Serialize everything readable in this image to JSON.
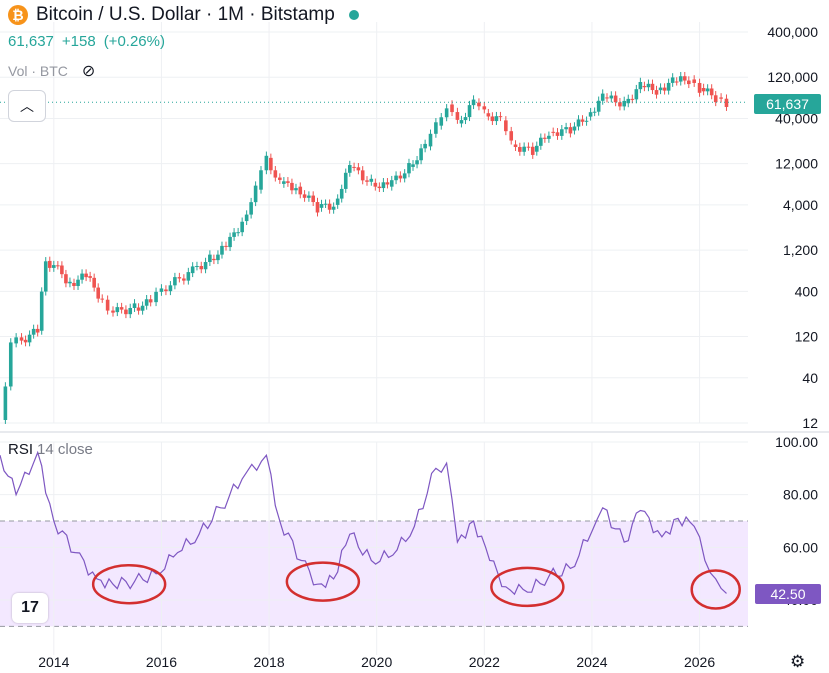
{
  "header": {
    "symbol_title": "Bitcoin / U.S. Dollar · 1M · Bitstamp",
    "coin_icon": "bitcoin-icon",
    "status_color": "#26a69a"
  },
  "quote": {
    "price": "61,637",
    "change": "+158",
    "change_pct": "(+0.26%)",
    "color": "#26a69a"
  },
  "volume": {
    "label": "Vol · BTC",
    "toggle_icon": "eye-off-icon"
  },
  "controls": {
    "collapse_icon": "chevron-up-icon",
    "settings_icon": "gear-icon",
    "logo": "tradingview-logo"
  },
  "price_tag": "61,637",
  "rsi": {
    "name": "RSI",
    "params": "14 close",
    "value_tag": "42.50",
    "color": "#7e57c2"
  },
  "colors": {
    "up": "#26a69a",
    "down": "#ef5350",
    "rsi_line": "#7e57c2",
    "rsi_band": "#f3e8ff",
    "oversold_circle": "#d32f2f"
  },
  "chart_data": [
    {
      "type": "candlestick",
      "title": "Bitcoin / U.S. Dollar · 1M · Bitstamp",
      "y_scale": "log",
      "y_ticks": [
        12,
        40,
        120,
        400,
        1200,
        4000,
        12000,
        40000,
        120000,
        400000
      ],
      "y_tick_labels": [
        "12",
        "40",
        "120",
        "400",
        "1,200",
        "4,000",
        "12,000",
        "40,000",
        "120,000",
        "400,000"
      ],
      "x_ticks": [
        "2014",
        "2016",
        "2018",
        "2020",
        "2022",
        "2024",
        "2026"
      ],
      "last_price": 61637,
      "grid": true,
      "series": [
        {
          "x": 2013.0,
          "y": 13
        },
        {
          "x": 2013.2,
          "y": 100
        },
        {
          "x": 2013.4,
          "y": 110
        },
        {
          "x": 2013.7,
          "y": 140
        },
        {
          "x": 2013.85,
          "y": 900
        },
        {
          "x": 2014.0,
          "y": 800
        },
        {
          "x": 2014.3,
          "y": 500
        },
        {
          "x": 2014.6,
          "y": 600
        },
        {
          "x": 2014.9,
          "y": 320
        },
        {
          "x": 2015.1,
          "y": 230
        },
        {
          "x": 2015.5,
          "y": 260
        },
        {
          "x": 2015.8,
          "y": 300
        },
        {
          "x": 2016.0,
          "y": 420
        },
        {
          "x": 2016.5,
          "y": 650
        },
        {
          "x": 2016.9,
          "y": 950
        },
        {
          "x": 2017.2,
          "y": 1300
        },
        {
          "x": 2017.5,
          "y": 2600
        },
        {
          "x": 2017.75,
          "y": 6000
        },
        {
          "x": 2017.95,
          "y": 14000
        },
        {
          "x": 2018.2,
          "y": 7000
        },
        {
          "x": 2018.5,
          "y": 6500
        },
        {
          "x": 2018.9,
          "y": 3700
        },
        {
          "x": 2019.2,
          "y": 4000
        },
        {
          "x": 2019.5,
          "y": 11000
        },
        {
          "x": 2019.9,
          "y": 7200
        },
        {
          "x": 2020.2,
          "y": 6500
        },
        {
          "x": 2020.6,
          "y": 11000
        },
        {
          "x": 2020.9,
          "y": 19000
        },
        {
          "x": 2021.1,
          "y": 33000
        },
        {
          "x": 2021.3,
          "y": 58000
        },
        {
          "x": 2021.5,
          "y": 35000
        },
        {
          "x": 2021.8,
          "y": 61000
        },
        {
          "x": 2022.0,
          "y": 46000
        },
        {
          "x": 2022.3,
          "y": 38000
        },
        {
          "x": 2022.5,
          "y": 20000
        },
        {
          "x": 2022.9,
          "y": 16500
        },
        {
          "x": 2023.2,
          "y": 28000
        },
        {
          "x": 2023.6,
          "y": 29000
        },
        {
          "x": 2023.9,
          "y": 42000
        },
        {
          "x": 2024.2,
          "y": 70000
        },
        {
          "x": 2024.6,
          "y": 60000
        },
        {
          "x": 2024.9,
          "y": 95000
        },
        {
          "x": 2025.2,
          "y": 85000
        },
        {
          "x": 2025.5,
          "y": 107000
        },
        {
          "x": 2025.8,
          "y": 113000
        },
        {
          "x": 2026.0,
          "y": 90000
        },
        {
          "x": 2026.3,
          "y": 70000
        },
        {
          "x": 2026.5,
          "y": 61637
        }
      ]
    },
    {
      "type": "line",
      "name": "RSI 14 close",
      "ylim": [
        40,
        100
      ],
      "y_ticks": [
        40,
        60,
        80,
        100
      ],
      "y_tick_labels": [
        "40.00",
        "60.00",
        "80.00",
        "100.00"
      ],
      "band": [
        30,
        70
      ],
      "last_value": 42.5,
      "x_ticks": [
        "2014",
        "2016",
        "2018",
        "2020",
        "2022",
        "2024",
        "2026"
      ],
      "series": [
        {
          "x": 2013.0,
          "y": 95
        },
        {
          "x": 2013.3,
          "y": 80
        },
        {
          "x": 2013.7,
          "y": 96
        },
        {
          "x": 2014.0,
          "y": 70
        },
        {
          "x": 2014.4,
          "y": 58
        },
        {
          "x": 2014.8,
          "y": 48
        },
        {
          "x": 2015.1,
          "y": 46
        },
        {
          "x": 2015.5,
          "y": 47
        },
        {
          "x": 2015.9,
          "y": 50
        },
        {
          "x": 2016.3,
          "y": 58
        },
        {
          "x": 2016.7,
          "y": 65
        },
        {
          "x": 2017.1,
          "y": 75
        },
        {
          "x": 2017.5,
          "y": 86
        },
        {
          "x": 2017.95,
          "y": 95
        },
        {
          "x": 2018.2,
          "y": 70
        },
        {
          "x": 2018.6,
          "y": 55
        },
        {
          "x": 2018.9,
          "y": 46
        },
        {
          "x": 2019.2,
          "y": 48
        },
        {
          "x": 2019.5,
          "y": 65
        },
        {
          "x": 2019.9,
          "y": 55
        },
        {
          "x": 2020.3,
          "y": 57
        },
        {
          "x": 2020.7,
          "y": 68
        },
        {
          "x": 2021.1,
          "y": 90
        },
        {
          "x": 2021.3,
          "y": 92
        },
        {
          "x": 2021.5,
          "y": 62
        },
        {
          "x": 2021.8,
          "y": 70
        },
        {
          "x": 2022.1,
          "y": 55
        },
        {
          "x": 2022.4,
          "y": 45
        },
        {
          "x": 2022.8,
          "y": 43
        },
        {
          "x": 2023.2,
          "y": 49
        },
        {
          "x": 2023.6,
          "y": 52
        },
        {
          "x": 2024.0,
          "y": 66
        },
        {
          "x": 2024.2,
          "y": 75
        },
        {
          "x": 2024.6,
          "y": 62
        },
        {
          "x": 2024.9,
          "y": 74
        },
        {
          "x": 2025.3,
          "y": 64
        },
        {
          "x": 2025.6,
          "y": 71
        },
        {
          "x": 2025.9,
          "y": 68
        },
        {
          "x": 2026.1,
          "y": 55
        },
        {
          "x": 2026.3,
          "y": 48
        },
        {
          "x": 2026.5,
          "y": 42.5
        }
      ],
      "annotations": [
        {
          "type": "circle",
          "x": 2015.4,
          "y": 46
        },
        {
          "type": "circle",
          "x": 2019.0,
          "y": 47
        },
        {
          "type": "circle",
          "x": 2022.8,
          "y": 45
        },
        {
          "type": "circle",
          "x": 2026.3,
          "y": 44
        }
      ]
    }
  ]
}
